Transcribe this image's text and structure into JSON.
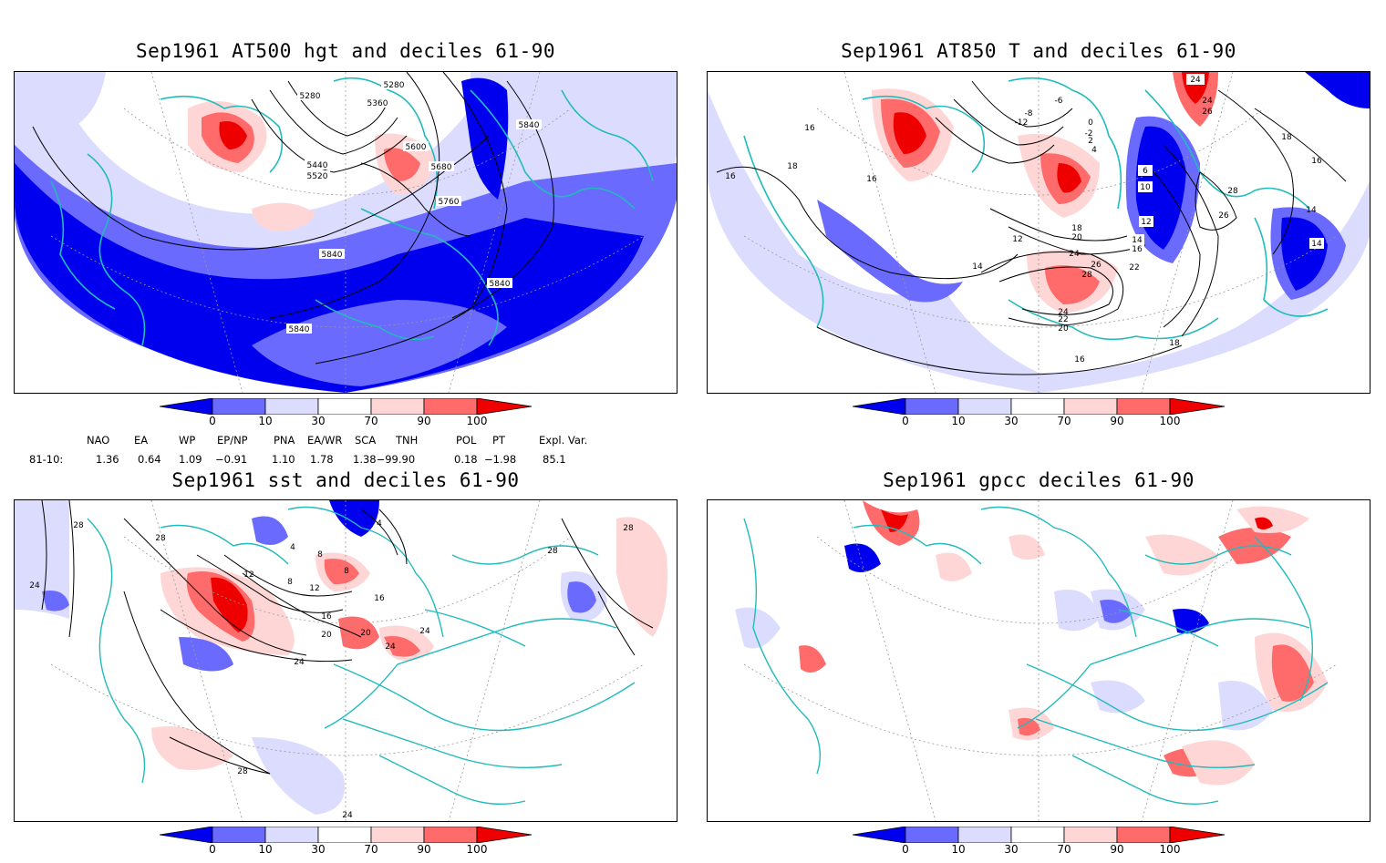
{
  "panels": {
    "top_left": {
      "title": "Sep1961 AT500 hgt and deciles 61-90",
      "contours": [
        "5280",
        "5280",
        "5360",
        "5440",
        "5520",
        "5600",
        "5680",
        "5760",
        "5840",
        "5840",
        "5840",
        "5840"
      ]
    },
    "top_right": {
      "title": "Sep1961 AT850 T and deciles 61-90",
      "contours": [
        "24",
        "24",
        "26",
        "18",
        "16",
        "-6",
        "-8",
        "-12",
        "0",
        "-2",
        "2",
        "4",
        "6",
        "10",
        "12",
        "14",
        "16",
        "18",
        "20",
        "22",
        "24",
        "26",
        "28",
        "28",
        "26",
        "16",
        "18",
        "16",
        "14",
        "14",
        "12",
        "14",
        "18",
        "16",
        "16",
        "20",
        "22",
        "24"
      ]
    },
    "bottom_left": {
      "title": "Sep1961 sst and deciles 61-90",
      "contours": [
        "28",
        "24",
        "28",
        "4",
        "8",
        "4",
        "12",
        "8",
        "8",
        "12",
        "16",
        "16",
        "20",
        "20",
        "24",
        "24",
        "24",
        "28",
        "28",
        "28",
        "24"
      ]
    },
    "bottom_right": {
      "title": "Sep1961 gpcc deciles 61-90"
    }
  },
  "colorbar": {
    "ticks": [
      "0",
      "10",
      "30",
      "70",
      "90",
      "100"
    ],
    "colors": [
      "#0000ee",
      "#6a6aff",
      "#dcdcff",
      "#ffffff",
      "#ffd6d6",
      "#ff6a6a",
      "#ee0000"
    ]
  },
  "indices": {
    "headers": [
      "NAO",
      "EA",
      "WP",
      "EP/NP",
      "PNA",
      "EA/WR",
      "SCA",
      "TNH",
      "POL",
      "PT",
      "Expl. Var."
    ],
    "row_label": "81-10:",
    "values": [
      "1.36",
      "0.64",
      "1.09",
      "−0.91",
      "1.10",
      "1.78",
      "1.38−99.90",
      "",
      "0.18",
      "−1.98",
      "85.1"
    ]
  },
  "colors": {
    "coast": "#22bbbb",
    "contour": "#000000"
  }
}
